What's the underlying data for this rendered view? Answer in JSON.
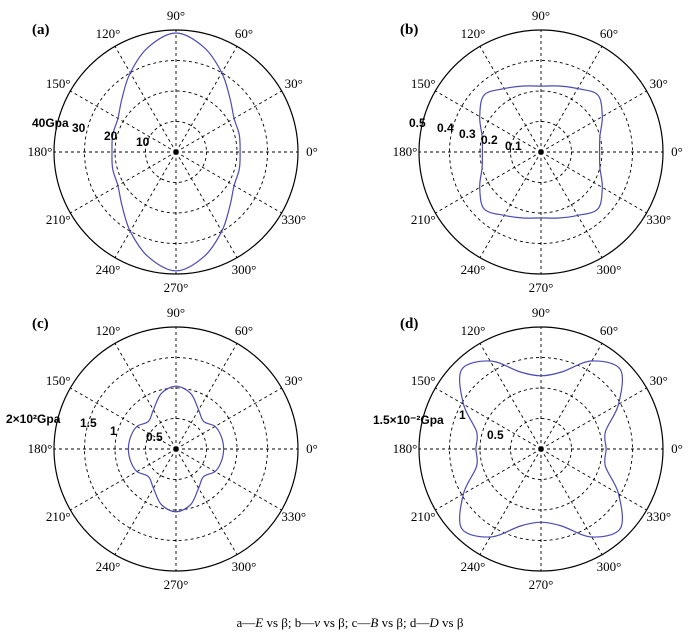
{
  "caption": {
    "a": "a—",
    "a_sym": "E",
    "a_rest": " vs β;",
    "b": "b—",
    "b_sym": "v",
    "b_rest": " vs β;",
    "c": "c—",
    "c_sym": "B",
    "c_rest": " vs β;",
    "d": "d—",
    "d_sym": "D",
    "d_rest": " vs β"
  },
  "angle_labels": [
    "0°",
    "30°",
    "60°",
    "90°",
    "120°",
    "150°",
    "180°",
    "210°",
    "240°",
    "270°",
    "300°",
    "330°"
  ],
  "colors": {
    "curve": "#4b4bb4",
    "grid": "#000000",
    "center": "#000000"
  },
  "chart_data": [
    {
      "type": "polar-line",
      "panel_label": "(a)",
      "unit_label": "40Gpa",
      "radial_labels": [
        "10",
        "20",
        "30"
      ],
      "rmax": 40,
      "grid": "dashed",
      "theta": [
        0,
        15,
        30,
        45,
        60,
        75,
        90,
        105,
        120,
        135,
        150,
        165,
        180,
        195,
        210,
        225,
        240,
        255,
        270,
        285,
        300,
        315,
        330,
        345
      ],
      "r": [
        21,
        21.5,
        22,
        25,
        30,
        35.5,
        39,
        35.5,
        30,
        25,
        22,
        21.5,
        21,
        21.5,
        22,
        25,
        30,
        35.5,
        39,
        35.5,
        30,
        25,
        22,
        21.5
      ]
    },
    {
      "type": "polar-line",
      "panel_label": "(b)",
      "unit_label": "0.5",
      "radial_labels": [
        "0.1",
        "0.2",
        "0.3",
        "0.4"
      ],
      "rmax": 0.5,
      "grid": "dashed",
      "theta": [
        0,
        15,
        30,
        45,
        60,
        75,
        90,
        105,
        120,
        135,
        150,
        165,
        180,
        195,
        210,
        225,
        240,
        255,
        270,
        285,
        300,
        315,
        330,
        345
      ],
      "r": [
        0.24,
        0.25,
        0.29,
        0.33,
        0.3,
        0.28,
        0.27,
        0.28,
        0.3,
        0.33,
        0.29,
        0.25,
        0.24,
        0.25,
        0.29,
        0.33,
        0.3,
        0.28,
        0.27,
        0.28,
        0.3,
        0.33,
        0.29,
        0.25
      ]
    },
    {
      "type": "polar-line",
      "panel_label": "(c)",
      "unit_label": "2×10²Gpa",
      "radial_labels": [
        "0.5",
        "1",
        "1.5"
      ],
      "rmax": 2,
      "grid": "dashed",
      "theta": [
        0,
        15,
        30,
        45,
        60,
        75,
        90,
        105,
        120,
        135,
        150,
        165,
        180,
        195,
        210,
        225,
        240,
        255,
        270,
        285,
        300,
        315,
        330,
        345
      ],
      "r": [
        0.78,
        0.77,
        0.74,
        0.64,
        0.74,
        0.94,
        1.03,
        0.94,
        0.74,
        0.64,
        0.74,
        0.77,
        0.78,
        0.77,
        0.74,
        0.64,
        0.74,
        0.94,
        1.03,
        0.94,
        0.74,
        0.64,
        0.74,
        0.77
      ]
    },
    {
      "type": "polar-line",
      "panel_label": "(d)",
      "unit_label": "1.5×10⁻²Gpa",
      "radial_labels": [
        "0.5",
        "1"
      ],
      "rmax": 1.5,
      "grid": "dashed",
      "theta": [
        0,
        15,
        30,
        45,
        60,
        75,
        90,
        105,
        120,
        135,
        150,
        165,
        180,
        195,
        210,
        225,
        240,
        255,
        270,
        285,
        300,
        315,
        330,
        345
      ],
      "r": [
        0.8,
        0.82,
        1.1,
        1.38,
        1.25,
        0.98,
        0.9,
        0.98,
        1.25,
        1.38,
        1.1,
        0.82,
        0.8,
        0.82,
        1.1,
        1.38,
        1.25,
        0.98,
        0.9,
        0.98,
        1.25,
        1.38,
        1.1,
        0.82
      ]
    }
  ]
}
